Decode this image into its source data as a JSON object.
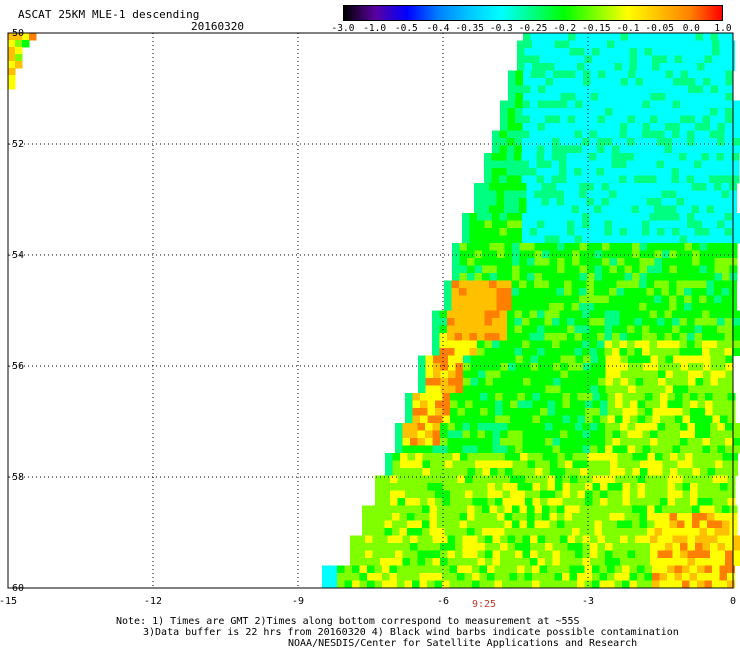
{
  "header": {
    "title": "ASCAT 25KM MLE-1 descending",
    "date": "20160320"
  },
  "colorbar": {
    "labels": [
      "-3.0",
      "-1.0",
      "-0.5",
      "-0.4",
      "-0.35",
      "-0.3",
      "-0.25",
      "-0.2",
      "-0.15",
      "-0.1",
      "-0.05",
      "0.0",
      "1.0"
    ],
    "colors": [
      "#000000",
      "#5a00a0",
      "#0000ff",
      "#0080ff",
      "#00c8ff",
      "#00ffff",
      "#00ff80",
      "#00ff00",
      "#80ff00",
      "#ffff00",
      "#ffc000",
      "#ff8000",
      "#ff0000"
    ]
  },
  "map": {
    "lon_range": [
      -15,
      0
    ],
    "lat_range": [
      -60,
      -50
    ],
    "x_ticks": [
      "-15",
      "-12",
      "-9",
      "-6",
      "-3",
      "0"
    ],
    "y_ticks": [
      "-50",
      "-52",
      "-54",
      "-56",
      "-58",
      "-60"
    ],
    "grid": "dotted",
    "swath_colors": {
      "cyan": "#00ffff",
      "aqua_green": "#00ff80",
      "green": "#00ff00",
      "yellow_green": "#80ff00",
      "yellow": "#ffff00",
      "orange_yellow": "#ffc000",
      "orange": "#ff8000"
    }
  },
  "footer": {
    "time_label": "9:25",
    "note_line1": "Note: 1) Times are GMT 2)Times along bottom correspond to measurement at ~55S",
    "note_line2": "3)Data buffer is 22 hrs from 20160320 4) Black wind barbs indicate possible contamination",
    "note_line3": "NOAA/NESDIS/Center for Satellite Applications and Research"
  }
}
